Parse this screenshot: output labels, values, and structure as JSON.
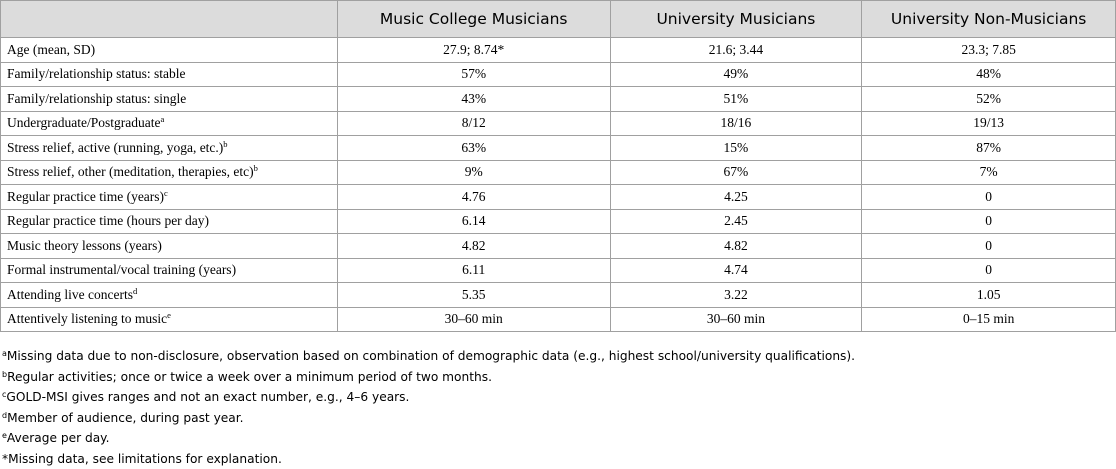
{
  "table": {
    "headers": [
      "",
      "Music College Musicians",
      "University Musicians",
      "University Non-Musicians"
    ],
    "rows": [
      {
        "label": "Age (mean, SD)",
        "sup": "",
        "values": [
          "27.9; 8.74*",
          "21.6; 3.44",
          "23.3; 7.85"
        ]
      },
      {
        "label": "Family/relationship status: stable",
        "sup": "",
        "values": [
          "57%",
          "49%",
          "48%"
        ]
      },
      {
        "label": "Family/relationship status: single",
        "sup": "",
        "values": [
          "43%",
          "51%",
          "52%"
        ]
      },
      {
        "label": "Undergraduate/Postgraduate",
        "sup": "a",
        "values": [
          "8/12",
          "18/16",
          "19/13"
        ]
      },
      {
        "label": "Stress relief, active (running, yoga, etc.)",
        "sup": "b",
        "values": [
          "63%",
          "15%",
          "87%"
        ]
      },
      {
        "label": "Stress relief, other (meditation, therapies, etc)",
        "sup": "b",
        "values": [
          "9%",
          "67%",
          "7%"
        ]
      },
      {
        "label": "Regular practice time (years)",
        "sup": "c",
        "values": [
          "4.76",
          "4.25",
          "0"
        ]
      },
      {
        "label": "Regular practice time (hours per day)",
        "sup": "",
        "values": [
          "6.14",
          "2.45",
          "0"
        ]
      },
      {
        "label": "Music theory lessons (years)",
        "sup": "",
        "values": [
          "4.82",
          "4.82",
          "0"
        ]
      },
      {
        "label": "Formal instrumental/vocal training (years)",
        "sup": "",
        "values": [
          "6.11",
          "4.74",
          "0"
        ]
      },
      {
        "label": "Attending live concerts",
        "sup": "d",
        "values": [
          "5.35",
          "3.22",
          "1.05"
        ]
      },
      {
        "label": "Attentively listening to music",
        "sup": "e",
        "values": [
          "30–60 min",
          "30–60 min",
          "0–15 min"
        ]
      }
    ]
  },
  "footnotes": [
    {
      "mark": "a",
      "text": "Missing data due to non-disclosure, observation based on combination of demographic data (e.g., highest school/university qualifications)."
    },
    {
      "mark": "b",
      "text": "Regular activities; once or twice a week over a minimum period of two months."
    },
    {
      "mark": "c",
      "text": "GOLD-MSI gives ranges and not an exact number, e.g., 4–6 years."
    },
    {
      "mark": "d",
      "text": "Member of audience, during past year."
    },
    {
      "mark": "e",
      "text": "Average per day."
    },
    {
      "mark": "",
      "text": "*Missing data, see limitations for explanation."
    }
  ]
}
